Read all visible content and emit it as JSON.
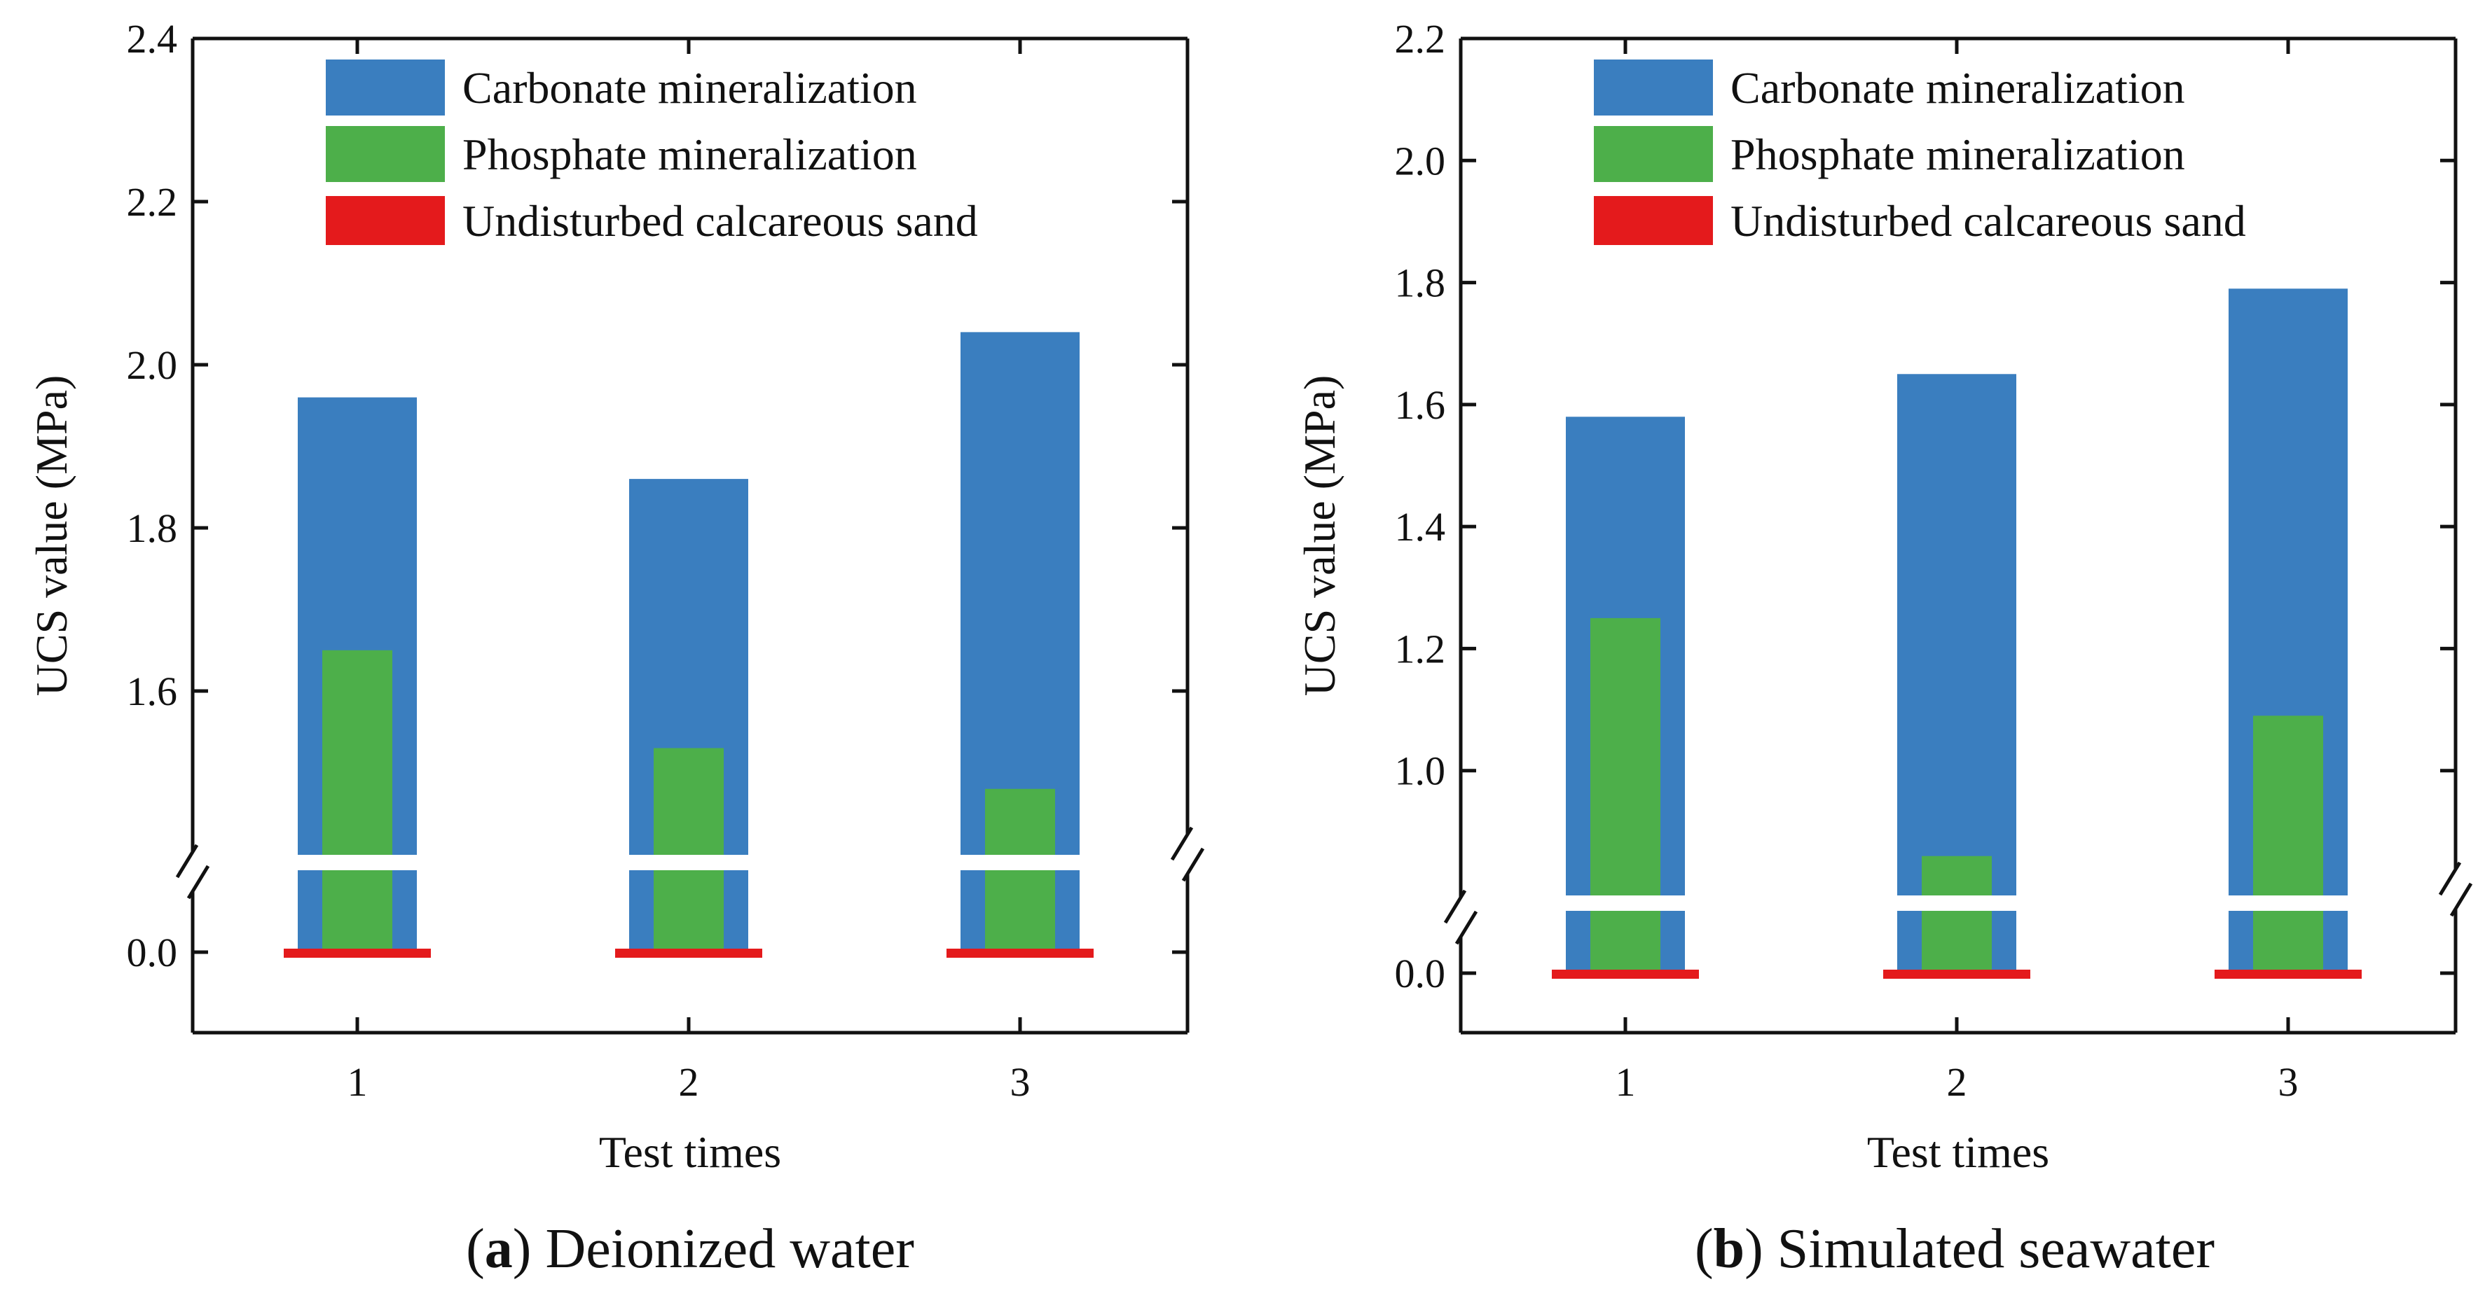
{
  "figure": {
    "captions": [
      {
        "letter": "a",
        "text": "Deionized water"
      },
      {
        "letter": "b",
        "text": "Simulated seawater"
      }
    ]
  },
  "chart_data": [
    {
      "type": "bar",
      "panel": "a",
      "title": "(a) Deionized water",
      "xlabel": "Test times",
      "ylabel": "UCS value (MPa)",
      "categories": [
        "1",
        "2",
        "3"
      ],
      "series": [
        {
          "name": "Carbonate mineralization",
          "color": "#3a7ebf",
          "values": [
            1.96,
            1.86,
            2.04
          ]
        },
        {
          "name": "Phosphate mineralization",
          "color": "#4daf4a",
          "values": [
            1.65,
            1.53,
            1.48
          ]
        },
        {
          "name": "Undisturbed calcareous sand",
          "color": "#e41a1c",
          "values": [
            0.0,
            0.0,
            0.0
          ]
        }
      ],
      "axis_break": {
        "lower_range": [
          0.0,
          0.0
        ],
        "upper_range": [
          1.4,
          2.4
        ]
      },
      "yticks": [
        "0.0",
        "1.6",
        "1.8",
        "2.0",
        "2.2",
        "2.4"
      ],
      "ytick_values": [
        0.0,
        1.6,
        1.8,
        2.0,
        2.2,
        2.4
      ],
      "legend_position": "top"
    },
    {
      "type": "bar",
      "panel": "b",
      "title": "(b) Simulated seawater",
      "xlabel": "Test times",
      "ylabel": "UCS value (MPa)",
      "categories": [
        "1",
        "2",
        "3"
      ],
      "series": [
        {
          "name": "Carbonate mineralization",
          "color": "#3a7ebf",
          "values": [
            1.58,
            1.65,
            1.79
          ]
        },
        {
          "name": "Phosphate mineralization",
          "color": "#4daf4a",
          "values": [
            1.25,
            0.86,
            1.09
          ]
        },
        {
          "name": "Undisturbed calcareous sand",
          "color": "#e41a1c",
          "values": [
            0.0,
            0.0,
            0.0
          ]
        }
      ],
      "axis_break": {
        "lower_range": [
          0.0,
          0.0
        ],
        "upper_range": [
          0.8,
          2.2
        ]
      },
      "yticks": [
        "0.0",
        "1.0",
        "1.2",
        "1.4",
        "1.6",
        "1.8",
        "2.0",
        "2.2"
      ],
      "ytick_values": [
        0.0,
        1.0,
        1.2,
        1.4,
        1.6,
        1.8,
        2.0,
        2.2
      ],
      "legend_position": "top"
    }
  ]
}
